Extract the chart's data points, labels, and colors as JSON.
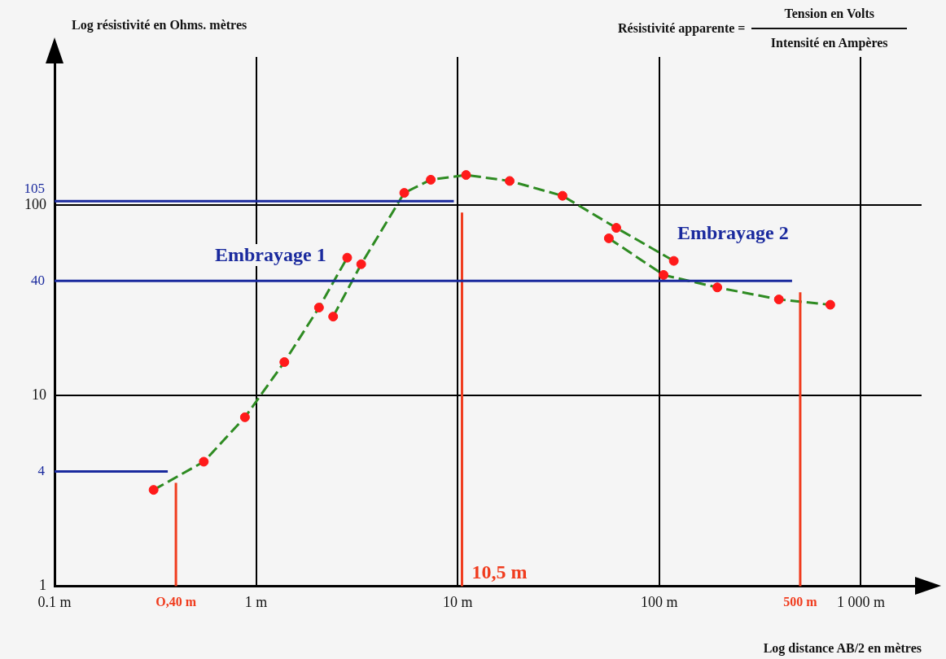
{
  "chart_data": {
    "type": "line",
    "xlabel": "Log distance AB/2 en mètres",
    "ylabel": "Log résistivité en Ohms. mètres",
    "annotations": [
      "Résistivité apparente =",
      "Tension en Volts",
      "Intensité en Ampères",
      "Embrayage 1",
      "Embrayage 2"
    ],
    "log": "xy",
    "grid": true,
    "legend": false,
    "line_style": "dashed",
    "xlim": [
      0.1,
      2000
    ],
    "ylim": [
      1,
      600
    ],
    "xticks": [
      {
        "value": 0.1,
        "label": "0.1 m"
      },
      {
        "value": 1,
        "label": "1 m"
      },
      {
        "value": 10,
        "label": "10 m"
      },
      {
        "value": 100,
        "label": "100 m"
      },
      {
        "value": 1000,
        "label": "1 000 m"
      }
    ],
    "yticks": [
      1,
      10,
      100
    ],
    "series": [
      {
        "color": "#2e8b22",
        "x": [
          0.31,
          0.55,
          0.88,
          1.38,
          2.05,
          2.83
        ],
        "values": [
          3.2,
          4.5,
          7.7,
          15,
          29,
          53
        ]
      },
      {
        "color": "#2e8b22",
        "x": [
          2.41,
          3.32,
          5.43,
          7.35,
          11,
          18.1,
          33.1,
          61.2,
          118
        ],
        "values": [
          26,
          49,
          116,
          136,
          144,
          134,
          112,
          76,
          51
        ]
      },
      {
        "color": "#2e8b22",
        "x": [
          56.2,
          105,
          194,
          392,
          705
        ],
        "values": [
          67,
          43,
          37,
          32,
          30
        ]
      },
      {
        "type": "scatter",
        "color": "#ff1a1a",
        "marker": "circle",
        "x": [
          0.31,
          0.55,
          0.88,
          1.38,
          2.05,
          2.41,
          2.83,
          3.32,
          5.43,
          7.35,
          11,
          18.1,
          33.1,
          61.2,
          56.2,
          118,
          105,
          194,
          392,
          705
        ],
        "values": [
          3.2,
          4.5,
          7.7,
          15,
          29,
          26,
          53,
          49,
          116,
          136,
          144,
          134,
          112,
          76,
          67,
          51,
          43,
          37,
          32,
          30
        ]
      }
    ],
    "ref_lines": [
      {
        "axis": "x",
        "value": 0.4,
        "label": "O,40 m",
        "color": "#f03c1e"
      },
      {
        "axis": "x",
        "value": 10.5,
        "label": "10,5 m",
        "color": "#f03c1e"
      },
      {
        "axis": "x",
        "value": 500,
        "label": "500 m",
        "color": "#f03c1e"
      },
      {
        "axis": "y",
        "value": 4,
        "label": "4",
        "color": "#1a2a9e"
      },
      {
        "axis": "y",
        "value": 105,
        "label": "105",
        "color": "#1a2a9e"
      },
      {
        "axis": "y",
        "value": 40,
        "label": "40",
        "color": "#1a2a9e"
      }
    ]
  }
}
